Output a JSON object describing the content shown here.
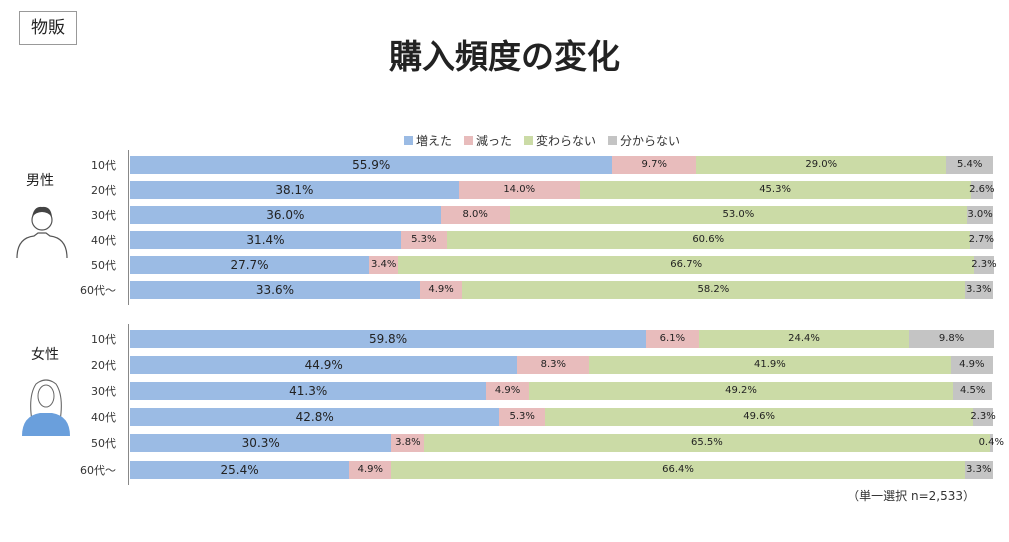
{
  "tag": "物販",
  "chart_data": {
    "type": "bar",
    "stacked": true,
    "orientation": "horizontal",
    "title": "購入頻度の変化",
    "legend": [
      "増えた",
      "減った",
      "変わらない",
      "分からない"
    ],
    "legend_position": "top",
    "colors": [
      "#9bbbe4",
      "#e8bcbc",
      "#cbdba6",
      "#c4c4c4"
    ],
    "groups": [
      {
        "name": "男性",
        "categories": [
          "10代",
          "20代",
          "30代",
          "40代",
          "50代",
          "60代～"
        ],
        "series": [
          {
            "name": "増えた",
            "values": [
              55.9,
              38.1,
              36.0,
              31.4,
              27.7,
              33.6
            ]
          },
          {
            "name": "減った",
            "values": [
              9.7,
              14.0,
              8.0,
              5.3,
              3.4,
              4.9
            ]
          },
          {
            "name": "変わらない",
            "values": [
              29.0,
              45.3,
              53.0,
              60.6,
              66.7,
              58.2
            ]
          },
          {
            "name": "分からない",
            "values": [
              5.4,
              2.6,
              3.0,
              2.7,
              2.3,
              3.3
            ]
          }
        ]
      },
      {
        "name": "女性",
        "categories": [
          "10代",
          "20代",
          "30代",
          "40代",
          "50代",
          "60代～"
        ],
        "series": [
          {
            "name": "増えた",
            "values": [
              59.8,
              44.9,
              41.3,
              42.8,
              30.3,
              25.4
            ]
          },
          {
            "name": "減った",
            "values": [
              6.1,
              8.3,
              4.9,
              5.3,
              3.8,
              4.9
            ]
          },
          {
            "name": "変わらない",
            "values": [
              24.4,
              41.9,
              49.2,
              49.6,
              65.5,
              66.4
            ]
          },
          {
            "name": "分からない",
            "values": [
              9.8,
              4.9,
              4.5,
              2.3,
              0.4,
              3.3
            ]
          }
        ]
      }
    ],
    "xlim": [
      0,
      100
    ],
    "note": "（単一選択 n=2,533）"
  }
}
